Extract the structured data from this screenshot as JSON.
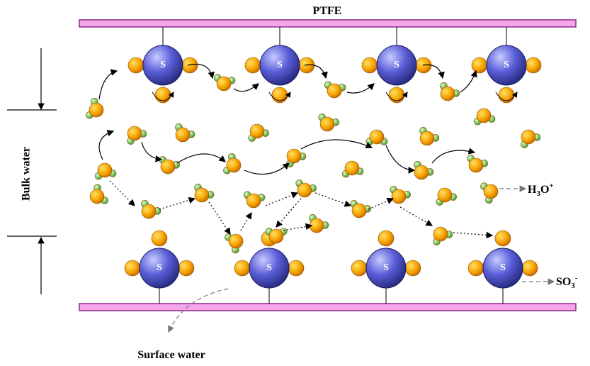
{
  "labels": {
    "ptfe": "PTFE",
    "bulk": "Bulk water",
    "surface": "Surface water",
    "h3o": {
      "h": "H",
      "sub": "3",
      "o": "O",
      "sup": "+"
    },
    "so3": {
      "so": "SO",
      "sub": "3",
      "sup": "-"
    }
  },
  "top_groups": [
    "S",
    "S",
    "S",
    "S"
  ],
  "bottom_groups": [
    "S",
    "S",
    "S",
    "S"
  ]
}
